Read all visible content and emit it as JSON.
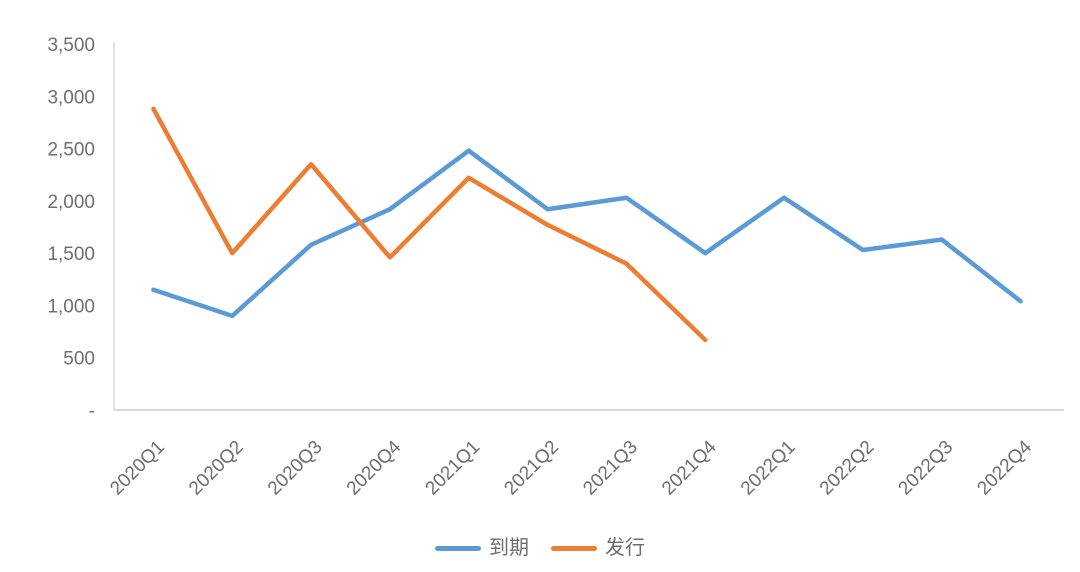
{
  "chart_data": {
    "type": "line",
    "title": "",
    "xlabel": "",
    "ylabel": "",
    "categories": [
      "2020Q1",
      "2020Q2",
      "2020Q3",
      "2020Q4",
      "2021Q1",
      "2021Q2",
      "2021Q3",
      "2021Q4",
      "2022Q1",
      "2022Q2",
      "2022Q3",
      "2022Q4"
    ],
    "series": [
      {
        "name": "到期",
        "slug": "maturity",
        "color": "#5B9BD5",
        "values": [
          1150,
          900,
          1580,
          1920,
          2480,
          1920,
          2030,
          1500,
          2030,
          1530,
          1630,
          1040
        ]
      },
      {
        "name": "发行",
        "slug": "issuance",
        "color": "#ED7D31",
        "values": [
          2880,
          1500,
          2350,
          1460,
          2220,
          1770,
          1400,
          670,
          null,
          null,
          null,
          null
        ]
      }
    ],
    "ylim": [
      0,
      3500
    ],
    "ytick_step": 500,
    "ytick_labels": [
      "-",
      "500",
      "1,000",
      "1,500",
      "2,000",
      "2,500",
      "3,000",
      "3,500"
    ],
    "grid": false,
    "legend_position": "bottom",
    "axis_color": "#d9d9d9",
    "tick_text_color": "#6e6e6e"
  }
}
